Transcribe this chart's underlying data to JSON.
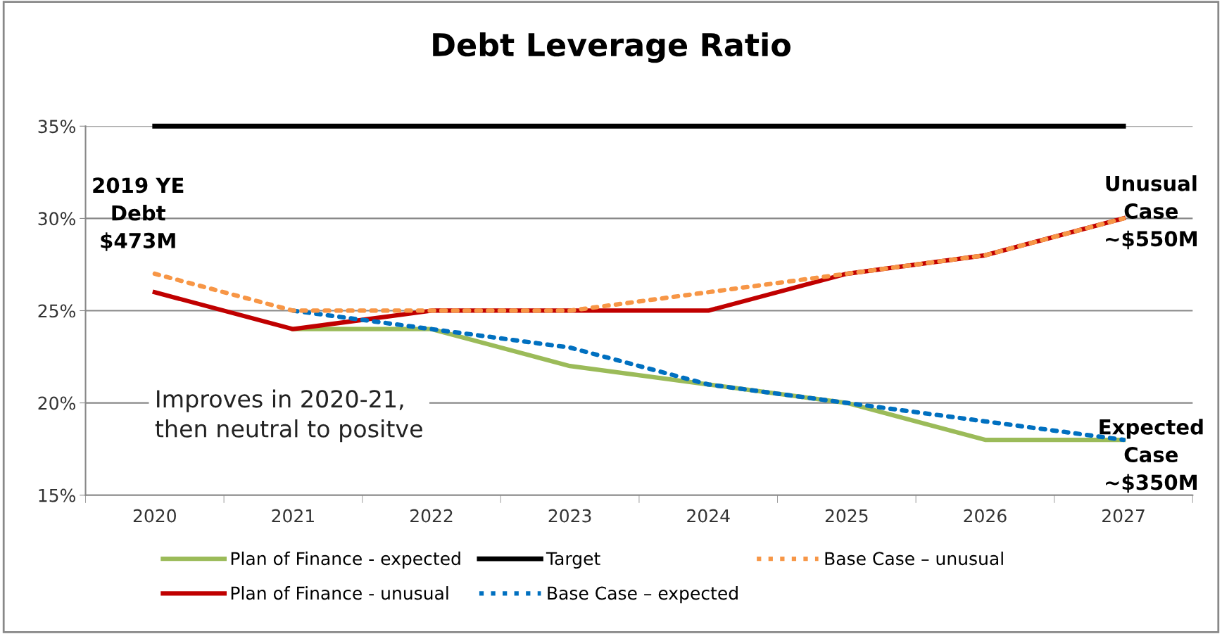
{
  "chart_data": {
    "type": "line",
    "title": "Debt Leverage Ratio",
    "categories": [
      "2020",
      "2021",
      "2022",
      "2023",
      "2024",
      "2025",
      "2026",
      "2027"
    ],
    "series": [
      {
        "name": "Plan of Finance - expected",
        "color": "#9bbb59",
        "line_style": "solid",
        "values": [
          null,
          24,
          24,
          22,
          21,
          20,
          18,
          18
        ]
      },
      {
        "name": "Plan of Finance - unusual",
        "color": "#c00000",
        "line_style": "solid",
        "values": [
          26,
          24,
          25,
          25,
          25,
          27,
          28,
          30
        ]
      },
      {
        "name": "Target",
        "color": "#000000",
        "line_style": "solid",
        "values": [
          35,
          35,
          35,
          35,
          35,
          35,
          35,
          35
        ]
      },
      {
        "name": "Base Case – expected",
        "color": "#0070c0",
        "line_style": "dotted",
        "values": [
          null,
          25,
          24,
          23,
          21,
          20,
          19,
          18
        ]
      },
      {
        "name": "Base Case – unusual",
        "color": "#f79646",
        "line_style": "dotted",
        "values": [
          27,
          25,
          25,
          25,
          26,
          27,
          28,
          30
        ]
      }
    ],
    "ylim": [
      15,
      35
    ],
    "yticks": [
      {
        "value": 15,
        "label": "15%"
      },
      {
        "value": 20,
        "label": "20%"
      },
      {
        "value": 25,
        "label": "25%"
      },
      {
        "value": 30,
        "label": "30%"
      },
      {
        "value": 35,
        "label": "35%"
      }
    ],
    "grid": "y",
    "legend": "bottom",
    "marker": "none",
    "annotations": [
      {
        "text": "2019 YE\nDebt\n$473M",
        "x": "2020",
        "y": 27
      },
      {
        "text": "Unusual\nCase\n~$550M",
        "x": "2027",
        "y": 30
      },
      {
        "text": "Expected\nCase\n~$350M",
        "x": "2027",
        "y": 18
      },
      "Improves in 2020-21,\nthen neutral to positve"
    ]
  }
}
